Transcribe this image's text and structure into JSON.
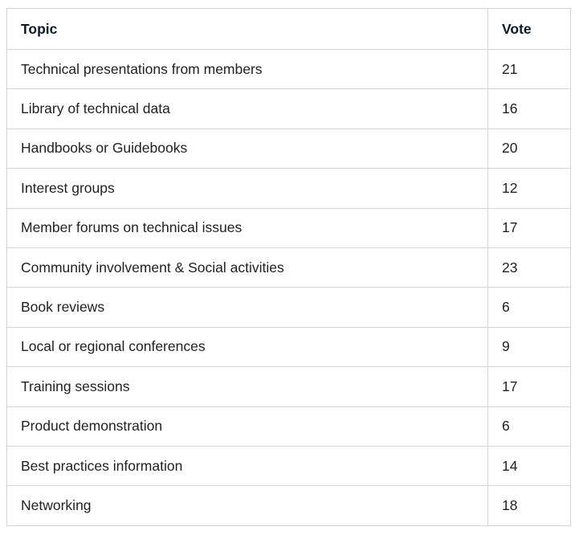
{
  "table": {
    "headers": {
      "topic": "Topic",
      "vote": "Vote"
    },
    "rows": [
      {
        "topic": "Technical presentations from members",
        "vote": "21"
      },
      {
        "topic": "Library of technical data",
        "vote": "16"
      },
      {
        "topic": "Handbooks or Guidebooks",
        "vote": "20"
      },
      {
        "topic": "Interest groups",
        "vote": "12"
      },
      {
        "topic": "Member forums on technical issues",
        "vote": "17"
      },
      {
        "topic": "Community involvement & Social activities",
        "vote": "23"
      },
      {
        "topic": "Book reviews",
        "vote": "6"
      },
      {
        "topic": "Local or regional conferences",
        "vote": "9"
      },
      {
        "topic": "Training sessions",
        "vote": "17"
      },
      {
        "topic": "Product demonstration",
        "vote": "6"
      },
      {
        "topic": "Best practices information",
        "vote": "14"
      },
      {
        "topic": "Networking",
        "vote": "18"
      }
    ]
  },
  "colors": {
    "border": "#d4d4d4",
    "header_text": "#0d1a2a",
    "body_text": "#222222"
  }
}
